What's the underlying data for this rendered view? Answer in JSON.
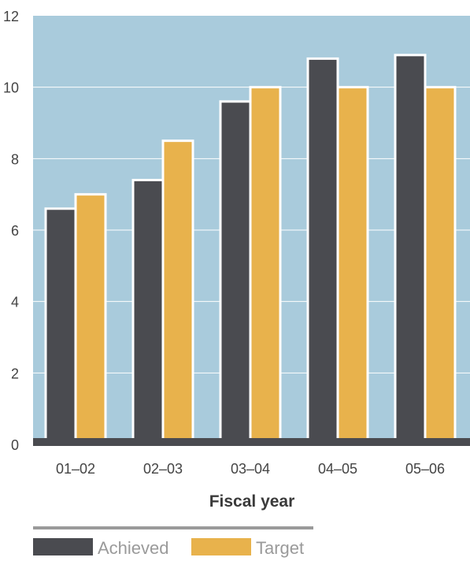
{
  "chart_data": {
    "type": "bar",
    "categories": [
      "01–02",
      "02–03",
      "03–04",
      "04–05",
      "05–06"
    ],
    "series": [
      {
        "name": "Achieved",
        "values": [
          6.6,
          7.4,
          9.6,
          10.8,
          10.9
        ],
        "color": "#4a4b50"
      },
      {
        "name": "Target",
        "values": [
          7.0,
          8.5,
          10.0,
          10.0,
          10.0
        ],
        "color": "#e8b24c"
      }
    ],
    "title": "",
    "xlabel": "Fiscal year",
    "ylabel": "",
    "ylim": [
      0,
      12
    ],
    "yticks": [
      0,
      2,
      4,
      6,
      8,
      10,
      12
    ],
    "grid": true,
    "legend_position": "bottom-left",
    "plot_background": "#a9cbdc",
    "gridline_color": "#ffffff",
    "baseline_color": "#4a4b50"
  }
}
